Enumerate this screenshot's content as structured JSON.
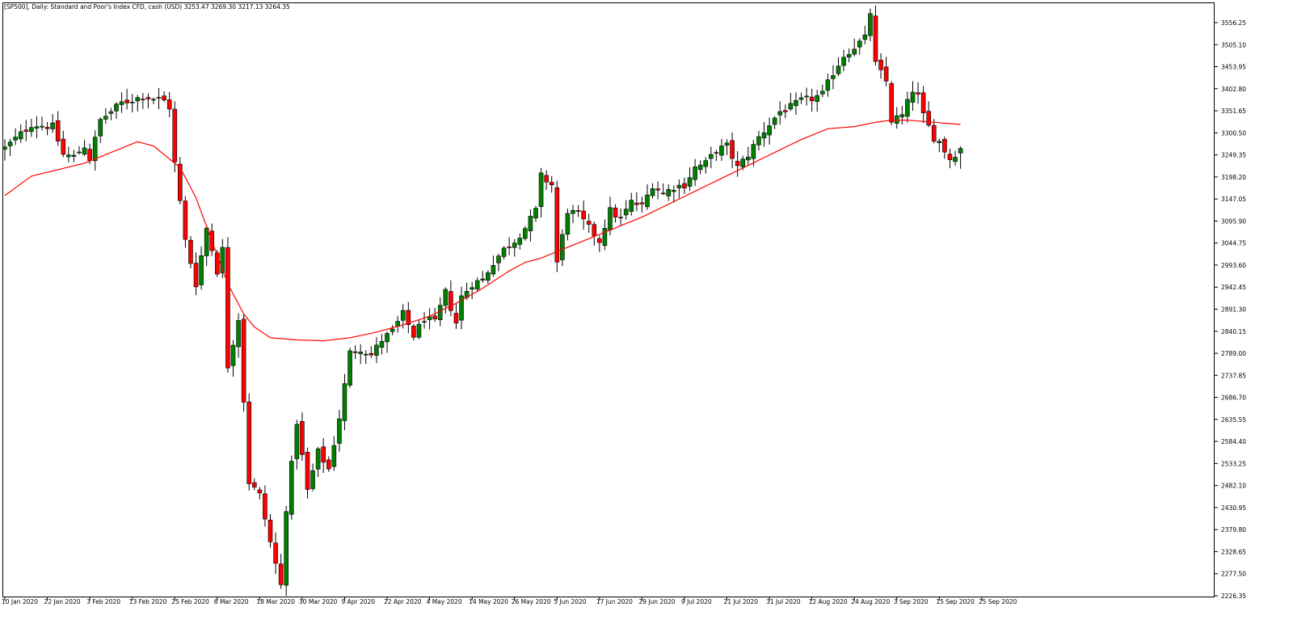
{
  "header": {
    "title": "[SP500], Daily:  Standard and Poor's Index CFD, cash (USD)  3253.47 3269.30 3217.13 3264.35"
  },
  "chart_data": {
    "type": "candlestick",
    "symbol": "SP500",
    "timeframe": "Daily",
    "instrument": "Standard and Poor's Index CFD, cash (USD)",
    "last_ohlc": {
      "open": 3253.47,
      "high": 3269.3,
      "low": 3217.13,
      "close": 3264.35
    },
    "colors": {
      "bull": "#008000",
      "bear": "#ff0000",
      "wick": "#000000",
      "ma": "#ff0000"
    },
    "ylim": [
      2200,
      3580
    ],
    "y_ticks": [
      "3556.25",
      "3505.10",
      "3453.95",
      "3402.80",
      "3351.65",
      "3300.50",
      "3249.35",
      "3198.20",
      "3147.05",
      "3095.90",
      "3044.75",
      "2993.60",
      "2942.45",
      "2891.30",
      "2840.15",
      "2789.00",
      "2737.85",
      "2686.70",
      "2635.55",
      "2584.40",
      "2533.25",
      "2482.10",
      "2430.95",
      "2379.80",
      "2328.65",
      "2277.50",
      "2226.35"
    ],
    "x_ticks": [
      {
        "label": "10 Jan 2020",
        "bar": 0
      },
      {
        "label": "22 Jan 2020",
        "bar": 8
      },
      {
        "label": "3 Feb 2020",
        "bar": 16
      },
      {
        "label": "13 Feb 2020",
        "bar": 24
      },
      {
        "label": "25 Feb 2020",
        "bar": 32
      },
      {
        "label": "6 Mar 2020",
        "bar": 40
      },
      {
        "label": "18 Mar 2020",
        "bar": 48
      },
      {
        "label": "30 Mar 2020",
        "bar": 56
      },
      {
        "label": "9 Apr 2020",
        "bar": 64
      },
      {
        "label": "22 Apr 2020",
        "bar": 72
      },
      {
        "label": "4 May 2020",
        "bar": 80
      },
      {
        "label": "14 May 2020",
        "bar": 88
      },
      {
        "label": "26 May 2020",
        "bar": 96
      },
      {
        "label": "5 Jun 2020",
        "bar": 104
      },
      {
        "label": "17 Jun 2020",
        "bar": 112
      },
      {
        "label": "29 Jun 2020",
        "bar": 120
      },
      {
        "label": "9 Jul 2020",
        "bar": 128
      },
      {
        "label": "21 Jul 2020",
        "bar": 136
      },
      {
        "label": "31 Jul 2020",
        "bar": 144
      },
      {
        "label": "12 Aug 2020",
        "bar": 152
      },
      {
        "label": "24 Aug 2020",
        "bar": 160
      },
      {
        "label": "3 Sep 2020",
        "bar": 168
      },
      {
        "label": "15 Sep 2020",
        "bar": 176
      },
      {
        "label": "25 Sep 2020",
        "bar": 184
      }
    ],
    "close_anchors": [
      [
        0,
        3265
      ],
      [
        5,
        3320
      ],
      [
        9,
        3315
      ],
      [
        11,
        3250
      ],
      [
        13,
        3245
      ],
      [
        15,
        3270
      ],
      [
        16,
        3240
      ],
      [
        18,
        3330
      ],
      [
        22,
        3370
      ],
      [
        26,
        3385
      ],
      [
        30,
        3375
      ],
      [
        31,
        3360
      ],
      [
        32,
        3230
      ],
      [
        34,
        3050
      ],
      [
        36,
        2950
      ],
      [
        38,
        3080
      ],
      [
        40,
        2980
      ],
      [
        41,
        3030
      ],
      [
        42,
        2760
      ],
      [
        44,
        2870
      ],
      [
        46,
        2490
      ],
      [
        48,
        2460
      ],
      [
        50,
        2350
      ],
      [
        52,
        2250
      ],
      [
        53,
        2430
      ],
      [
        55,
        2630
      ],
      [
        57,
        2470
      ],
      [
        59,
        2560
      ],
      [
        61,
        2520
      ],
      [
        63,
        2640
      ],
      [
        65,
        2790
      ],
      [
        67,
        2800
      ],
      [
        69,
        2785
      ],
      [
        71,
        2820
      ],
      [
        73,
        2840
      ],
      [
        75,
        2880
      ],
      [
        77,
        2830
      ],
      [
        79,
        2870
      ],
      [
        81,
        2860
      ],
      [
        83,
        2930
      ],
      [
        85,
        2860
      ],
      [
        86,
        2920
      ],
      [
        88,
        2950
      ],
      [
        90,
        2960
      ],
      [
        92,
        3000
      ],
      [
        94,
        3030
      ],
      [
        96,
        3050
      ],
      [
        98,
        3080
      ],
      [
        100,
        3120
      ],
      [
        101,
        3200
      ],
      [
        103,
        3180
      ],
      [
        104,
        3000
      ],
      [
        106,
        3120
      ],
      [
        108,
        3110
      ],
      [
        110,
        3080
      ],
      [
        112,
        3050
      ],
      [
        114,
        3120
      ],
      [
        116,
        3100
      ],
      [
        118,
        3140
      ],
      [
        120,
        3130
      ],
      [
        122,
        3180
      ],
      [
        124,
        3160
      ],
      [
        126,
        3175
      ],
      [
        128,
        3180
      ],
      [
        130,
        3220
      ],
      [
        132,
        3230
      ],
      [
        134,
        3260
      ],
      [
        136,
        3270
      ],
      [
        138,
        3220
      ],
      [
        140,
        3250
      ],
      [
        142,
        3290
      ],
      [
        144,
        3320
      ],
      [
        146,
        3350
      ],
      [
        148,
        3360
      ],
      [
        150,
        3375
      ],
      [
        152,
        3380
      ],
      [
        154,
        3390
      ],
      [
        156,
        3440
      ],
      [
        158,
        3480
      ],
      [
        160,
        3500
      ],
      [
        162,
        3520
      ],
      [
        163,
        3580
      ],
      [
        164,
        3460
      ],
      [
        166,
        3420
      ],
      [
        167,
        3330
      ],
      [
        169,
        3340
      ],
      [
        171,
        3400
      ],
      [
        172,
        3385
      ],
      [
        173,
        3340
      ],
      [
        175,
        3290
      ],
      [
        176,
        3280
      ],
      [
        178,
        3240
      ],
      [
        180,
        3265
      ]
    ],
    "ma_anchors": [
      [
        0,
        3155
      ],
      [
        5,
        3200
      ],
      [
        10,
        3215
      ],
      [
        15,
        3230
      ],
      [
        20,
        3255
      ],
      [
        25,
        3280
      ],
      [
        28,
        3270
      ],
      [
        30,
        3250
      ],
      [
        33,
        3220
      ],
      [
        36,
        3150
      ],
      [
        39,
        3050
      ],
      [
        42,
        2950
      ],
      [
        45,
        2880
      ],
      [
        47,
        2850
      ],
      [
        50,
        2825
      ],
      [
        55,
        2820
      ],
      [
        60,
        2818
      ],
      [
        65,
        2825
      ],
      [
        70,
        2838
      ],
      [
        75,
        2855
      ],
      [
        80,
        2875
      ],
      [
        85,
        2905
      ],
      [
        90,
        2940
      ],
      [
        95,
        2980
      ],
      [
        98,
        3000
      ],
      [
        101,
        3010
      ],
      [
        105,
        3030
      ],
      [
        110,
        3055
      ],
      [
        115,
        3080
      ],
      [
        120,
        3105
      ],
      [
        125,
        3135
      ],
      [
        130,
        3165
      ],
      [
        135,
        3195
      ],
      [
        140,
        3225
      ],
      [
        145,
        3255
      ],
      [
        150,
        3285
      ],
      [
        155,
        3310
      ],
      [
        160,
        3315
      ],
      [
        162,
        3320
      ],
      [
        164,
        3325
      ],
      [
        167,
        3330
      ],
      [
        170,
        3330
      ],
      [
        175,
        3325
      ],
      [
        180,
        3320
      ]
    ]
  }
}
